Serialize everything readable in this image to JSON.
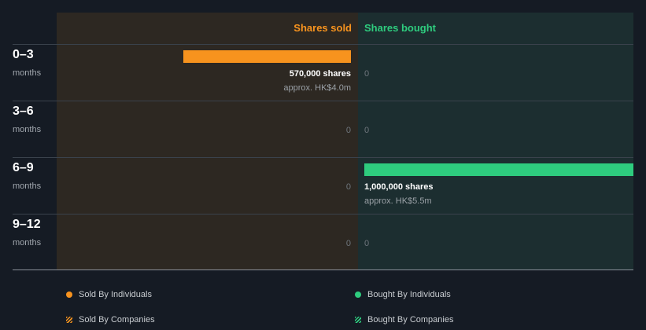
{
  "chart_data": {
    "type": "bar",
    "orientation": "horizontal-diverging",
    "headers": {
      "sold": "Shares sold",
      "bought": "Shares bought"
    },
    "categories": [
      {
        "range": "0–3",
        "unit": "months"
      },
      {
        "range": "3–6",
        "unit": "months"
      },
      {
        "range": "6–9",
        "unit": "months"
      },
      {
        "range": "9–12",
        "unit": "months"
      }
    ],
    "series": [
      {
        "name": "Shares sold",
        "values": [
          570000,
          0,
          0,
          0
        ],
        "shares_labels": [
          "570,000 shares",
          "0",
          "0",
          "0"
        ],
        "approx_labels": [
          "approx. HK$4.0m",
          "",
          "",
          ""
        ]
      },
      {
        "name": "Shares bought",
        "values": [
          0,
          0,
          1000000,
          0
        ],
        "shares_labels": [
          "0",
          "0",
          "1,000,000 shares",
          "0"
        ],
        "approx_labels": [
          "",
          "",
          "approx. HK$5.5m",
          ""
        ]
      }
    ],
    "legend": [
      {
        "label": "Sold By Individuals",
        "color": "#f7931e",
        "style": "dot"
      },
      {
        "label": "Bought By Individuals",
        "color": "#2ecc7e",
        "style": "dot"
      },
      {
        "label": "Sold By Companies",
        "color": "#f7931e",
        "style": "hatch"
      },
      {
        "label": "Bought By Companies",
        "color": "#2ecc7e",
        "style": "hatch"
      }
    ],
    "colors": {
      "sold": "#f7931e",
      "bought": "#2ecc7e"
    }
  }
}
